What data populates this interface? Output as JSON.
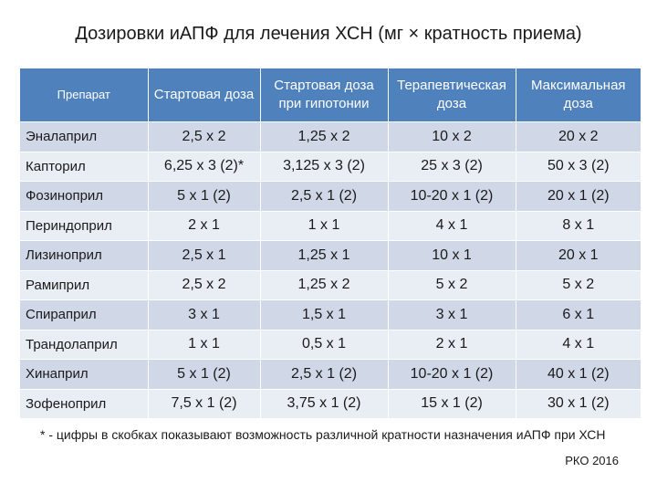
{
  "title": "Дозировки иАПФ для лечения ХСН  (мг × кратность приема)",
  "table": {
    "headers": [
      "Препарат",
      "Стартовая доза",
      "Стартовая доза при гипотонии",
      "Терапевтическая доза",
      "Максимальная доза"
    ],
    "rows": [
      [
        "Эналаприл",
        "2,5 х 2",
        "1,25 х 2",
        "10 х 2",
        "20 х 2"
      ],
      [
        "Капторил",
        "6,25 х 3 (2)*",
        "3,125 х 3 (2)",
        "25 х 3 (2)",
        "50 х 3 (2)"
      ],
      [
        "Фозиноприл",
        "5 х 1 (2)",
        "2,5 х 1 (2)",
        "10-20 х 1 (2)",
        "20 х 1 (2)"
      ],
      [
        "Периндоприл",
        "2 х 1",
        "1 х 1",
        "4 х 1",
        "8 х 1"
      ],
      [
        "Лизиноприл",
        "2,5 х 1",
        "1,25 х 1",
        "10 х 1",
        "20 х 1"
      ],
      [
        "Рамиприл",
        "2,5 х 2",
        "1,25 х 2",
        "5 х 2",
        "5 х 2"
      ],
      [
        "Спираприл",
        "3 х 1",
        "1,5 х 1",
        "3 х 1",
        "6 х 1"
      ],
      [
        "Трандолаприл",
        "1 х 1",
        "0,5 х 1",
        "2 х 1",
        "4 х 1"
      ],
      [
        "Хинаприл",
        "5 х 1 (2)",
        "2,5 х 1 (2)",
        "10-20 х 1 (2)",
        "40 х 1 (2)"
      ],
      [
        "Зофеноприл",
        "7,5 х 1 (2)",
        "3,75 х 1 (2)",
        "15 х 1 (2)",
        "30 х 1 (2)"
      ]
    ]
  },
  "footnote": "* - цифры в скобках показывают возможность  различной кратности назначения иАПФ при ХСН",
  "source": "РКО 2016",
  "colors": {
    "header_bg": "#4f81bd",
    "row_odd": "#d0d8e8",
    "row_even": "#e9edf4"
  }
}
